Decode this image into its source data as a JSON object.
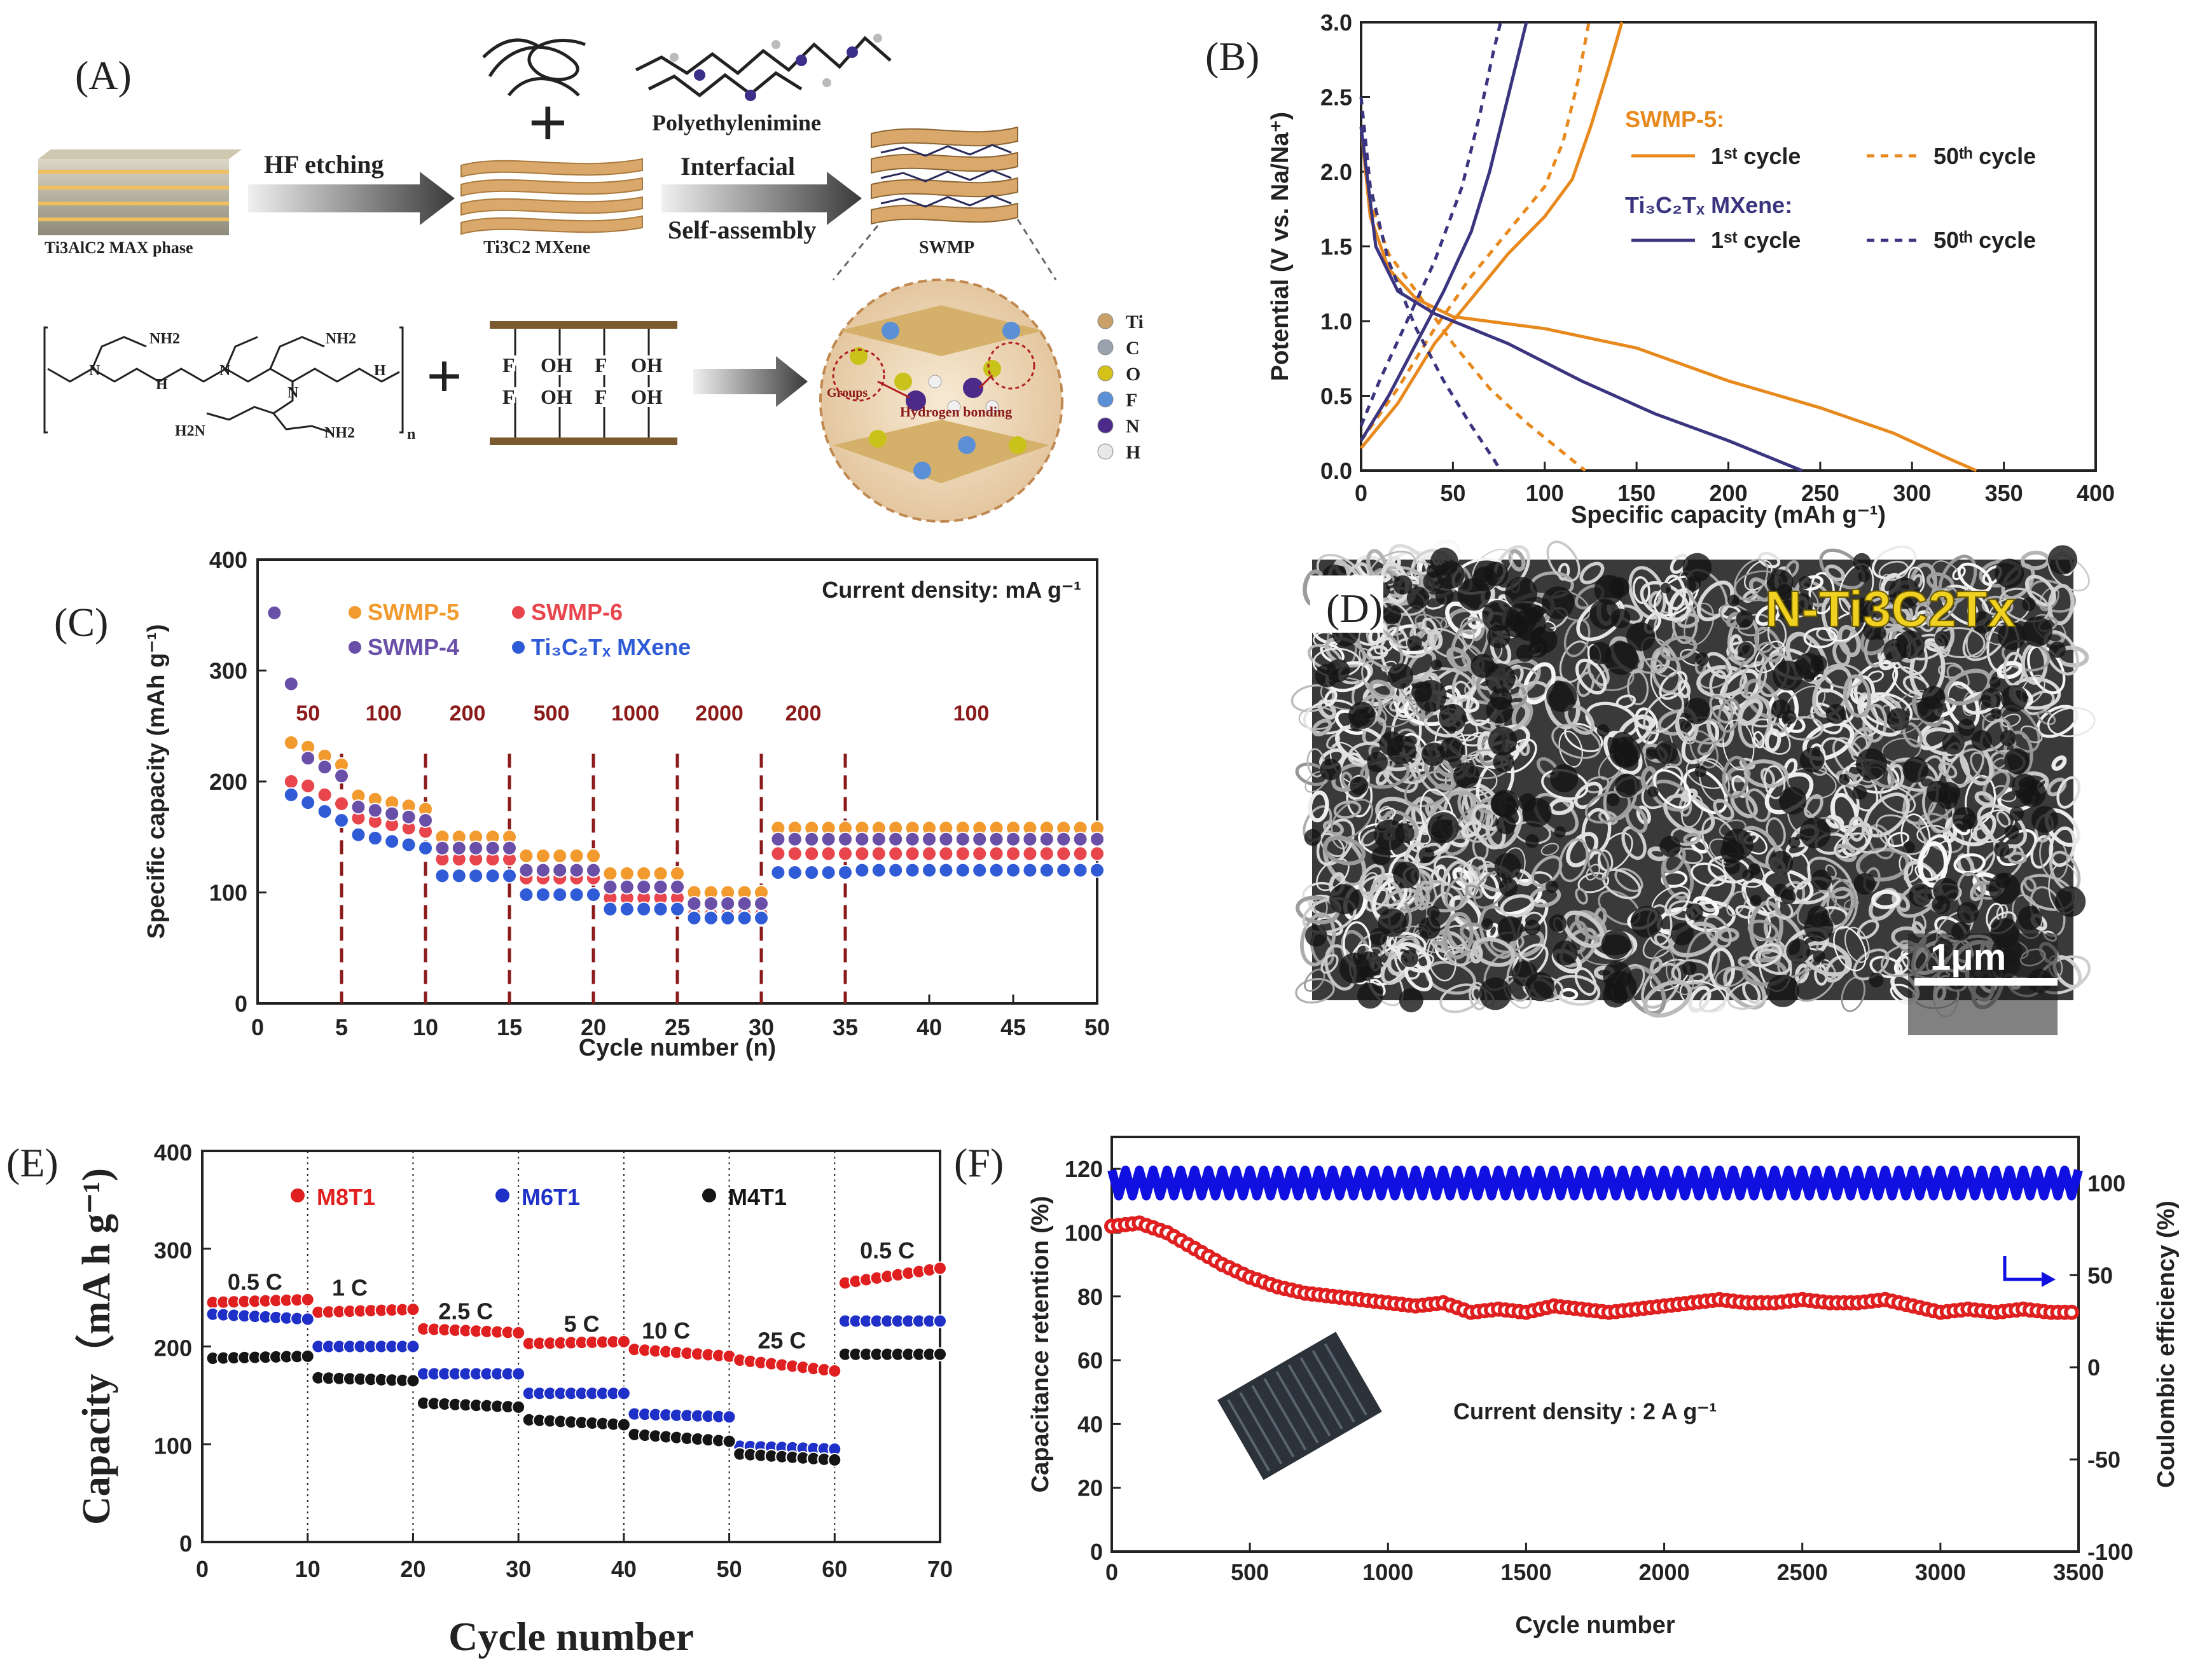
{
  "panels": {
    "a": {
      "label": "(A)",
      "polymer_label": "Polyethylenimine",
      "plus": "+",
      "max_phase": "Ti3AlC2 MAX phase",
      "hf_etching": "HF etching",
      "mxene": "Ti3C2 MXene",
      "interfacial": "Interfacial",
      "self_assembly": "Self-assembly",
      "swmp": "SWMP",
      "f": "F",
      "oh": "OH",
      "n_sub": "n",
      "nh2": "NH2",
      "h2n": "H2N",
      "h": "H",
      "n": "N",
      "groups": "Groups",
      "hbond": "Hydrogen bonding",
      "elements": [
        {
          "sym": "Ti",
          "color": "#c9a06a"
        },
        {
          "sym": "C",
          "color": "#9aa3ad"
        },
        {
          "sym": "O",
          "color": "#d4c21a"
        },
        {
          "sym": "F",
          "color": "#5b8fd6"
        },
        {
          "sym": "N",
          "color": "#4b2a8a"
        },
        {
          "sym": "H",
          "color": "#e8e8e8"
        }
      ]
    },
    "b": {
      "label": "(B)"
    },
    "c": {
      "label": "(C)"
    },
    "d": {
      "label": "(D)",
      "material": "N-Ti3C2Tx",
      "scale": "1μm"
    },
    "e": {
      "label": "(E)"
    },
    "f": {
      "label": "(F)"
    }
  },
  "chart_data": [
    {
      "id": "B",
      "type": "line",
      "xlabel": "Specific capacity (mAh g⁻¹)",
      "ylabel": "Potential (V vs. Na/Na⁺)",
      "xlim": [
        0,
        400
      ],
      "ylim": [
        0,
        3.0
      ],
      "xticks": [
        0,
        50,
        100,
        150,
        200,
        250,
        300,
        350,
        400
      ],
      "yticks": [
        0.0,
        0.5,
        1.0,
        1.5,
        2.0,
        2.5,
        3.0
      ],
      "legend_group1": "SWMP-5:",
      "legend_group2": "Ti₃C₂Tₓ MXene:",
      "legend_c1": "1ˢᵗ cycle",
      "legend_c50": "50ᵗʰ cycle",
      "series": [
        {
          "name": "SWMP-5 1st discharge",
          "color": "#e8891e",
          "dash": false,
          "points": [
            [
              0,
              2.3
            ],
            [
              5,
              1.7
            ],
            [
              15,
              1.35
            ],
            [
              30,
              1.15
            ],
            [
              50,
              1.03
            ],
            [
              100,
              0.95
            ],
            [
              150,
              0.82
            ],
            [
              200,
              0.6
            ],
            [
              250,
              0.42
            ],
            [
              290,
              0.25
            ],
            [
              320,
              0.08
            ],
            [
              335,
              0.0
            ]
          ]
        },
        {
          "name": "SWMP-5 1st charge",
          "color": "#e8891e",
          "dash": false,
          "points": [
            [
              0,
              0.15
            ],
            [
              20,
              0.45
            ],
            [
              40,
              0.85
            ],
            [
              60,
              1.15
            ],
            [
              80,
              1.45
            ],
            [
              100,
              1.7
            ],
            [
              115,
              1.95
            ],
            [
              125,
              2.3
            ],
            [
              135,
              2.7
            ],
            [
              142,
              3.0
            ]
          ]
        },
        {
          "name": "SWMP-5 50th discharge",
          "color": "#e8891e",
          "dash": true,
          "points": [
            [
              0,
              2.3
            ],
            [
              5,
              1.8
            ],
            [
              15,
              1.45
            ],
            [
              30,
              1.2
            ],
            [
              50,
              0.85
            ],
            [
              70,
              0.55
            ],
            [
              90,
              0.32
            ],
            [
              110,
              0.12
            ],
            [
              122,
              0.0
            ]
          ]
        },
        {
          "name": "SWMP-5 50th charge",
          "color": "#e8891e",
          "dash": true,
          "points": [
            [
              0,
              0.2
            ],
            [
              20,
              0.55
            ],
            [
              40,
              0.95
            ],
            [
              60,
              1.3
            ],
            [
              80,
              1.6
            ],
            [
              100,
              1.9
            ],
            [
              110,
              2.2
            ],
            [
              118,
              2.6
            ],
            [
              124,
              3.0
            ]
          ]
        },
        {
          "name": "MXene 1st discharge",
          "color": "#3b3580",
          "dash": false,
          "points": [
            [
              0,
              2.3
            ],
            [
              8,
              1.5
            ],
            [
              20,
              1.2
            ],
            [
              40,
              1.05
            ],
            [
              80,
              0.85
            ],
            [
              120,
              0.6
            ],
            [
              160,
              0.38
            ],
            [
              200,
              0.2
            ],
            [
              230,
              0.05
            ],
            [
              240,
              0.0
            ]
          ]
        },
        {
          "name": "MXene 1st charge",
          "color": "#3b3580",
          "dash": false,
          "points": [
            [
              0,
              0.2
            ],
            [
              15,
              0.5
            ],
            [
              30,
              0.85
            ],
            [
              45,
              1.2
            ],
            [
              60,
              1.6
            ],
            [
              70,
              2.0
            ],
            [
              78,
              2.4
            ],
            [
              85,
              2.75
            ],
            [
              90,
              3.0
            ]
          ]
        },
        {
          "name": "MXene 50th discharge",
          "color": "#3b3580",
          "dash": true,
          "points": [
            [
              0,
              2.5
            ],
            [
              5,
              1.9
            ],
            [
              15,
              1.4
            ],
            [
              30,
              0.95
            ],
            [
              45,
              0.6
            ],
            [
              60,
              0.3
            ],
            [
              72,
              0.08
            ],
            [
              76,
              0.0
            ]
          ]
        },
        {
          "name": "MXene 50th charge",
          "color": "#3b3580",
          "dash": true,
          "points": [
            [
              0,
              0.3
            ],
            [
              10,
              0.6
            ],
            [
              25,
              1.0
            ],
            [
              40,
              1.4
            ],
            [
              55,
              1.9
            ],
            [
              65,
              2.4
            ],
            [
              72,
              2.8
            ],
            [
              76,
              3.0
            ]
          ]
        }
      ]
    },
    {
      "id": "C",
      "type": "scatter",
      "xlabel": "Cycle number (n)",
      "ylabel": "Specific capacity (mAh g⁻¹)",
      "xlim": [
        0,
        50
      ],
      "ylim": [
        0,
        400
      ],
      "xticks": [
        0,
        5,
        10,
        15,
        20,
        25,
        30,
        35,
        40,
        45,
        50
      ],
      "yticks": [
        0,
        100,
        200,
        300,
        400
      ],
      "annotation": "Current density: mA g⁻¹",
      "segment_boundaries": [
        5,
        10,
        15,
        20,
        25,
        30,
        35
      ],
      "segment_labels": [
        {
          "text": "50",
          "x": 3.0
        },
        {
          "text": "100",
          "x": 7.5
        },
        {
          "text": "200",
          "x": 12.5
        },
        {
          "text": "500",
          "x": 17.5
        },
        {
          "text": "1000",
          "x": 22.5
        },
        {
          "text": "2000",
          "x": 27.5
        },
        {
          "text": "200",
          "x": 32.5
        },
        {
          "text": "100",
          "x": 42.5
        }
      ],
      "series": [
        {
          "name": "SWMP-5",
          "color": "#f29a2e",
          "first": [
            [
              1,
              null
            ],
            [
              2,
              235
            ]
          ],
          "levels": [
            215,
            175,
            150,
            133,
            117,
            100,
            158,
            158
          ]
        },
        {
          "name": "SWMP-6",
          "color": "#e8454d",
          "first": [
            [
              1,
              null
            ],
            [
              2,
              200
            ]
          ],
          "levels": [
            180,
            155,
            130,
            113,
            95,
            80,
            135,
            135
          ]
        },
        {
          "name": "SWMP-4",
          "color": "#6a4fa8",
          "first": [
            [
              1,
              352
            ],
            [
              2,
              288
            ]
          ],
          "levels": [
            205,
            165,
            140,
            120,
            105,
            90,
            148,
            148
          ]
        },
        {
          "name": "Ti₃C₂Tₓ MXene",
          "color": "#2f5bd6",
          "first": [
            [
              1,
              null
            ],
            [
              2,
              188
            ]
          ],
          "levels": [
            165,
            140,
            115,
            98,
            85,
            77,
            118,
            120
          ]
        }
      ]
    },
    {
      "id": "E",
      "type": "scatter",
      "xlabel": "Cycle number",
      "ylabel": "Capacity（mA h g⁻¹)",
      "xlim": [
        0,
        70
      ],
      "ylim": [
        0,
        400
      ],
      "xticks": [
        0,
        10,
        20,
        30,
        40,
        50,
        60,
        70
      ],
      "yticks": [
        0,
        100,
        200,
        300,
        400
      ],
      "boundaries": [
        10,
        20,
        30,
        40,
        50,
        60
      ],
      "rate_labels": [
        {
          "text": "0.5 C",
          "x": 5,
          "y": 258
        },
        {
          "text": "1 C",
          "x": 14,
          "y": 252
        },
        {
          "text": "2.5 C",
          "x": 25,
          "y": 228
        },
        {
          "text": "5 C",
          "x": 36,
          "y": 215
        },
        {
          "text": "10 C",
          "x": 44,
          "y": 208
        },
        {
          "text": "25 C",
          "x": 55,
          "y": 198
        },
        {
          "text": "0.5 C",
          "x": 65,
          "y": 290
        }
      ],
      "series": [
        {
          "name": "M8T1",
          "color": "#e02020",
          "segments": [
            [
              245,
              248
            ],
            [
              235,
              238
            ],
            [
              218,
              214
            ],
            [
              203,
              205
            ],
            [
              197,
              190
            ],
            [
              186,
              175
            ],
            [
              265,
              280
            ]
          ]
        },
        {
          "name": "M6T1",
          "color": "#1f30c8",
          "segments": [
            [
              233,
              228
            ],
            [
              200,
              200
            ],
            [
              172,
              172
            ],
            [
              152,
              152
            ],
            [
              131,
              128
            ],
            [
              98,
              95
            ],
            [
              226,
              226
            ]
          ]
        },
        {
          "name": "M4T1",
          "color": "#151515",
          "segments": [
            [
              188,
              190
            ],
            [
              168,
              165
            ],
            [
              142,
              138
            ],
            [
              125,
              120
            ],
            [
              110,
              103
            ],
            [
              90,
              84
            ],
            [
              192,
              192
            ]
          ]
        }
      ]
    },
    {
      "id": "F",
      "type": "line",
      "xlabel": "Cycle number",
      "ylabel": "Capacitance retention (%)",
      "ylabel_right": "Coulombic efficiency (%)",
      "xlim": [
        0,
        3500
      ],
      "ylim": [
        0,
        130
      ],
      "ylim_right": [
        -100,
        125
      ],
      "xticks": [
        0,
        500,
        1000,
        1500,
        2000,
        2500,
        3000,
        3500
      ],
      "yticks": [
        0,
        20,
        40,
        60,
        80,
        100,
        120
      ],
      "yticks_right": [
        -100,
        -50,
        0,
        50,
        100
      ],
      "annotation": "Current density : 2 A g⁻¹",
      "series": [
        {
          "name": "Capacitance retention",
          "color": "#e02020",
          "points": [
            [
              0,
              102
            ],
            [
              100,
              103
            ],
            [
              200,
              100
            ],
            [
              300,
              95
            ],
            [
              400,
              90
            ],
            [
              500,
              86
            ],
            [
              600,
              83
            ],
            [
              700,
              81
            ],
            [
              800,
              80
            ],
            [
              900,
              79
            ],
            [
              1000,
              78
            ],
            [
              1100,
              77
            ],
            [
              1200,
              78
            ],
            [
              1300,
              75
            ],
            [
              1400,
              76
            ],
            [
              1500,
              75
            ],
            [
              1600,
              77
            ],
            [
              1700,
              76
            ],
            [
              1800,
              75
            ],
            [
              1900,
              76
            ],
            [
              2000,
              77
            ],
            [
              2100,
              78
            ],
            [
              2200,
              79
            ],
            [
              2300,
              78
            ],
            [
              2400,
              78
            ],
            [
              2500,
              79
            ],
            [
              2600,
              78
            ],
            [
              2700,
              78
            ],
            [
              2800,
              79
            ],
            [
              2900,
              77
            ],
            [
              3000,
              75
            ],
            [
              3100,
              76
            ],
            [
              3200,
              75
            ],
            [
              3300,
              76
            ],
            [
              3400,
              75
            ],
            [
              3500,
              75
            ]
          ]
        },
        {
          "name": "Coulombic efficiency",
          "color": "#1010e0",
          "axis": "right",
          "level": 100
        }
      ]
    }
  ]
}
